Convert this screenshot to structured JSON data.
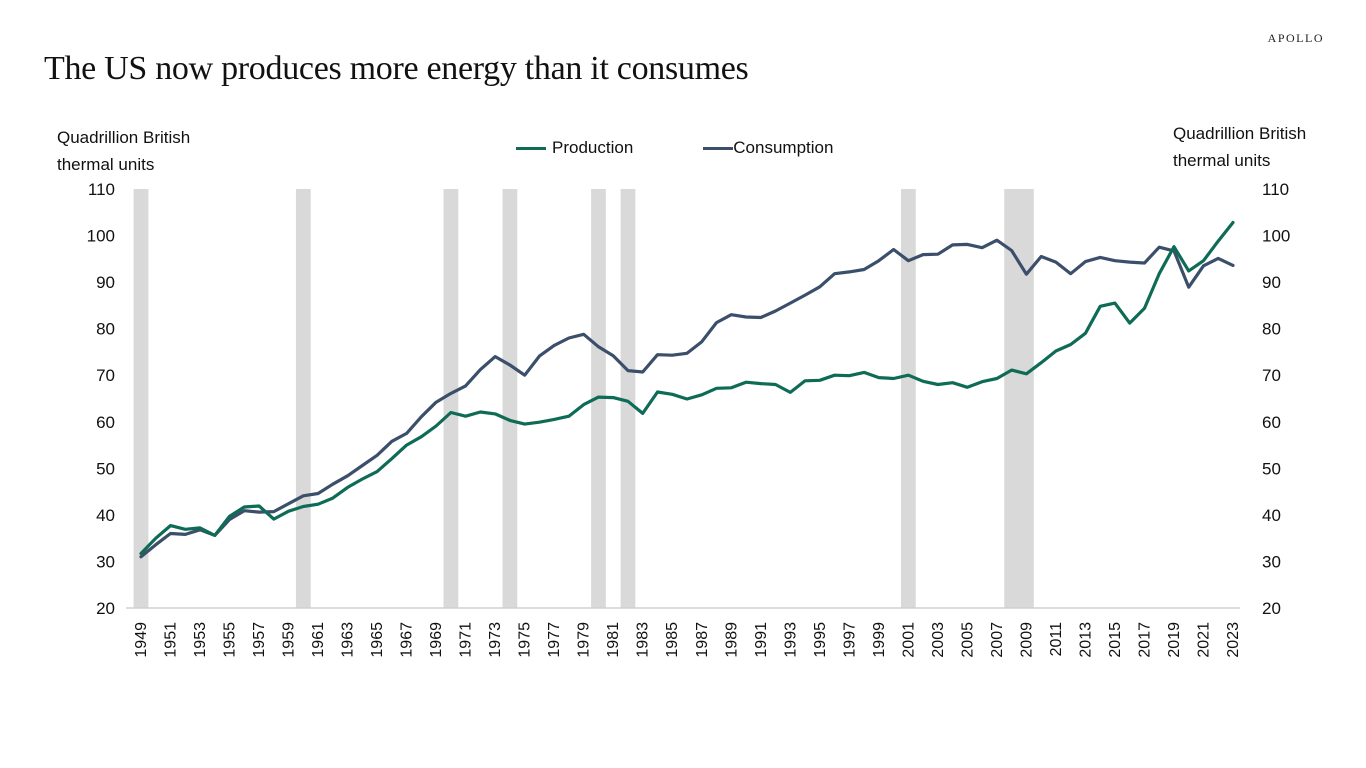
{
  "brand": "APOLLO",
  "title": "The US now produces more energy than it consumes",
  "colors": {
    "production": "#0e6b56",
    "consumption": "#3b4f6b",
    "recession": "#d9d9d9",
    "axis": "#d0d0d0"
  },
  "chart_data": {
    "type": "line",
    "title": "The US now produces more energy than it consumes",
    "ylabel_left": "Quadrillion British thermal units",
    "ylabel_right": "Quadrillion British thermal units",
    "ylabel_left_lines": [
      "Quadrillion British",
      "thermal units"
    ],
    "ylabel_right_lines": [
      "Quadrillion British",
      "thermal units"
    ],
    "xlabel": "",
    "ylim": [
      20,
      110
    ],
    "yticks": [
      20,
      30,
      40,
      50,
      60,
      70,
      80,
      90,
      100,
      110
    ],
    "xlim": [
      1949,
      2023
    ],
    "xtick_labels": [
      "1949",
      "1951",
      "1953",
      "1955",
      "1957",
      "1959",
      "1961",
      "1963",
      "1965",
      "1967",
      "1969",
      "1971",
      "1973",
      "1975",
      "1977",
      "1979",
      "1981",
      "1983",
      "1985",
      "1987",
      "1989",
      "1991",
      "1993",
      "1995",
      "1997",
      "1999",
      "2001",
      "2003",
      "2005",
      "2007",
      "2009",
      "2011",
      "2013",
      "2015",
      "2017",
      "2019",
      "2021",
      "2023"
    ],
    "legend_position": "top-center",
    "grid": false,
    "recessions": [
      [
        1949,
        1949
      ],
      [
        1960,
        1960
      ],
      [
        1970,
        1970
      ],
      [
        1974,
        1974
      ],
      [
        1980,
        1980
      ],
      [
        1982,
        1982
      ],
      [
        2001,
        2001
      ],
      [
        2008,
        2009
      ]
    ],
    "x": [
      1949,
      1950,
      1951,
      1952,
      1953,
      1954,
      1955,
      1956,
      1957,
      1958,
      1959,
      1960,
      1961,
      1962,
      1963,
      1964,
      1965,
      1966,
      1967,
      1968,
      1969,
      1970,
      1971,
      1972,
      1973,
      1974,
      1975,
      1976,
      1977,
      1978,
      1979,
      1980,
      1981,
      1982,
      1983,
      1984,
      1985,
      1986,
      1987,
      1988,
      1989,
      1990,
      1991,
      1992,
      1993,
      1994,
      1995,
      1996,
      1997,
      1998,
      1999,
      2000,
      2001,
      2002,
      2003,
      2004,
      2005,
      2006,
      2007,
      2008,
      2009,
      2010,
      2011,
      2012,
      2013,
      2014,
      2015,
      2016,
      2017,
      2018,
      2019,
      2020,
      2021,
      2022,
      2023
    ],
    "series": [
      {
        "name": "Production",
        "values": [
          31.7,
          35.0,
          37.7,
          36.9,
          37.2,
          35.6,
          39.7,
          41.7,
          41.9,
          39.1,
          40.8,
          41.8,
          42.3,
          43.6,
          45.9,
          47.7,
          49.3,
          52.1,
          55.0,
          56.8,
          59.1,
          62.0,
          61.2,
          62.1,
          61.7,
          60.3,
          59.5,
          59.9,
          60.5,
          61.2,
          63.7,
          65.3,
          65.2,
          64.4,
          61.8,
          66.4,
          65.9,
          64.9,
          65.8,
          67.2,
          67.3,
          68.5,
          68.2,
          68.0,
          66.3,
          68.8,
          68.9,
          70.0,
          69.9,
          70.6,
          69.5,
          69.3,
          70.0,
          68.7,
          68.0,
          68.4,
          67.4,
          68.6,
          69.3,
          71.1,
          70.3,
          72.7,
          75.2,
          76.6,
          79.0,
          84.8,
          85.5,
          81.2,
          84.4,
          91.8,
          97.6,
          92.4,
          94.6,
          98.8,
          102.8
        ]
      },
      {
        "name": "Consumption",
        "values": [
          31.0,
          33.6,
          36.0,
          35.8,
          36.8,
          35.6,
          39.0,
          40.9,
          40.6,
          40.7,
          42.4,
          44.1,
          44.6,
          46.6,
          48.4,
          50.6,
          52.8,
          55.8,
          57.5,
          61.1,
          64.2,
          66.1,
          67.7,
          71.2,
          74.0,
          72.2,
          70.0,
          74.1,
          76.4,
          78.0,
          78.8,
          76.1,
          74.2,
          71.0,
          70.7,
          74.4,
          74.3,
          74.7,
          77.2,
          81.3,
          83.0,
          82.5,
          82.4,
          83.8,
          85.5,
          87.2,
          89.0,
          91.8,
          92.2,
          92.7,
          94.6,
          97.0,
          94.6,
          95.9,
          96.0,
          98.0,
          98.1,
          97.4,
          99.0,
          96.8,
          91.7,
          95.5,
          94.3,
          91.8,
          94.4,
          95.3,
          94.6,
          94.3,
          94.1,
          97.5,
          96.7,
          88.9,
          93.5,
          95.1,
          93.6
        ]
      }
    ]
  }
}
